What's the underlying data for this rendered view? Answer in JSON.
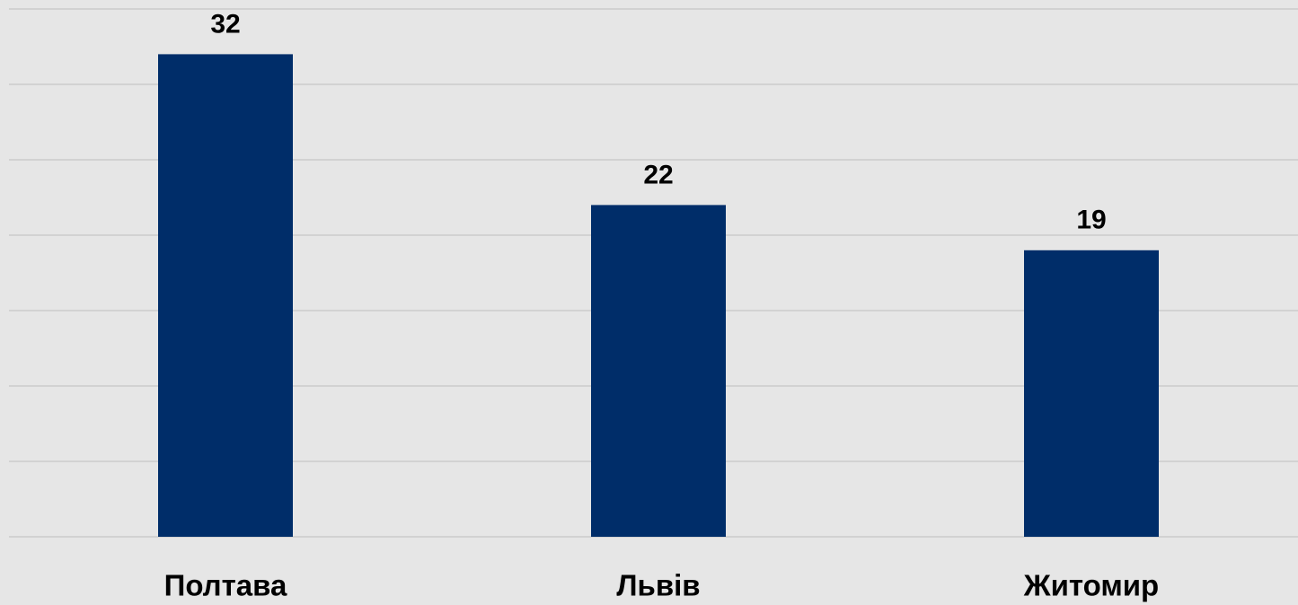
{
  "chart_data": {
    "type": "bar",
    "categories": [
      "Полтава",
      "Львів",
      "Житомир"
    ],
    "values": [
      32,
      22,
      19
    ],
    "color": "#002d69",
    "ylim": [
      0,
      35
    ],
    "yticks": [
      0,
      5,
      10,
      15,
      20,
      25,
      30,
      35
    ],
    "grid": true
  }
}
